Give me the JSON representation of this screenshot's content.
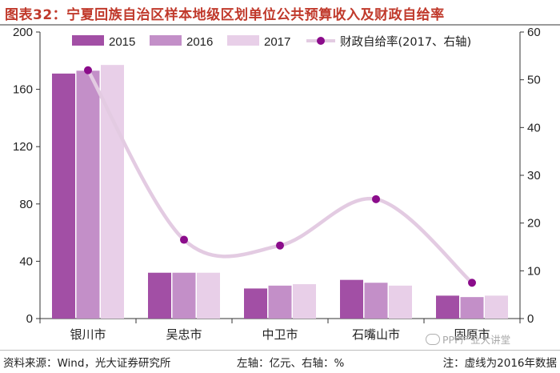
{
  "title": "图表32：宁夏回族自治区样本地级区划单位公共预算收入及财政自给率",
  "footer": {
    "source": "资料来源：Wind，光大证券研究所",
    "units": "左轴：亿元、右轴：%",
    "note": "注：虚线为2016年数据"
  },
  "watermark": "PPP产业大讲堂",
  "colors": {
    "title": "#c0392b",
    "s2015": "#a24fa5",
    "s2016": "#c38fc8",
    "s2017": "#e8cfe8",
    "line": "#e3cbe2",
    "marker": "#8b0c8b"
  },
  "chart_data": {
    "type": "bar",
    "categories": [
      "银川市",
      "吴忠市",
      "中卫市",
      "石嘴山市",
      "固原市"
    ],
    "series": [
      {
        "name": "2015",
        "type": "bar",
        "axis": "left",
        "values": [
          171,
          32,
          21,
          27,
          16
        ]
      },
      {
        "name": "2016",
        "type": "bar",
        "axis": "left",
        "values": [
          173,
          32,
          23,
          25,
          15
        ]
      },
      {
        "name": "2017",
        "type": "bar",
        "axis": "left",
        "values": [
          177,
          32,
          24,
          23,
          16
        ]
      },
      {
        "name": "财政自给率(2017、右轴)",
        "type": "line",
        "axis": "right",
        "values": [
          52,
          16.5,
          15.3,
          25,
          7.5
        ]
      }
    ],
    "y_left": {
      "min": 0,
      "max": 200,
      "ticks": [
        0,
        40,
        80,
        120,
        160,
        200
      ]
    },
    "y_right": {
      "min": 0,
      "max": 60,
      "ticks": [
        0,
        10,
        20,
        30,
        40,
        50,
        60
      ]
    },
    "grid": false,
    "legend_position": "top"
  }
}
